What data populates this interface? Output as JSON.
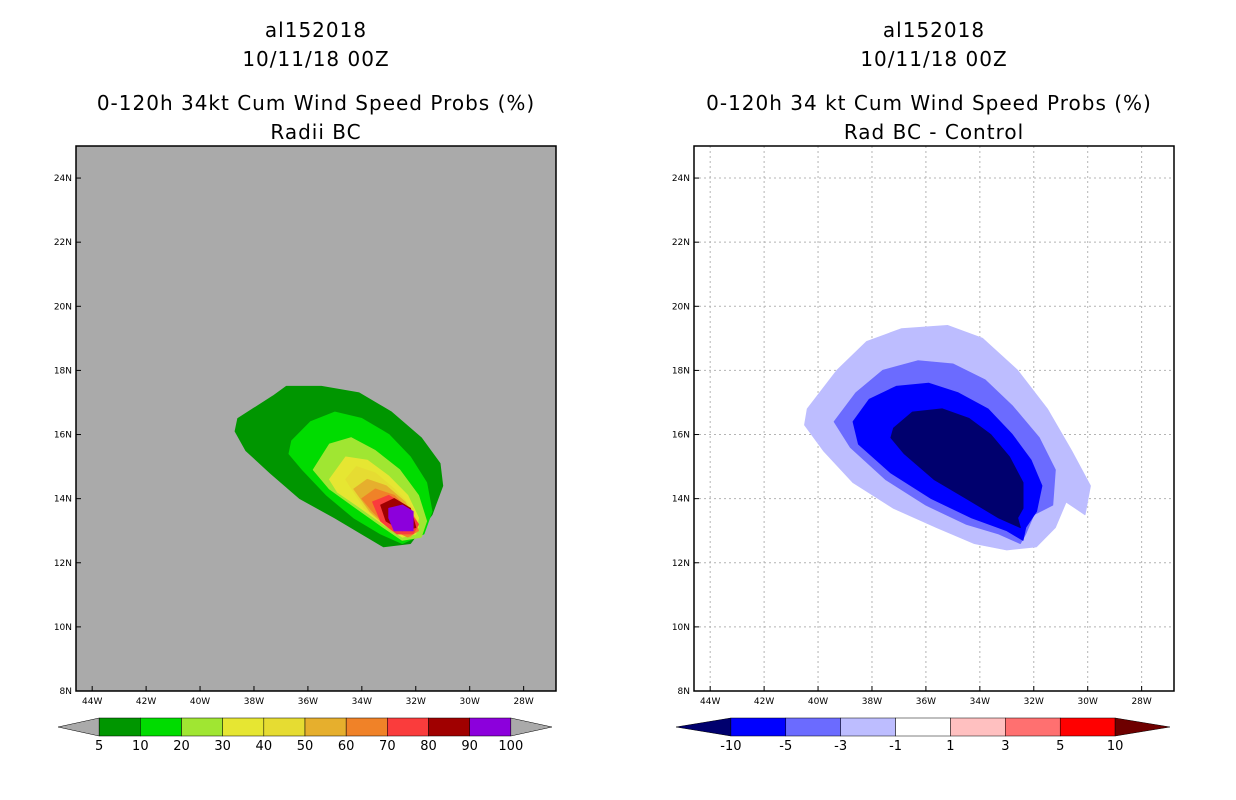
{
  "chart_data": [
    {
      "type": "filled-contour-map",
      "case_id": "al152018",
      "date": "10/11/18 00Z",
      "title": "0-120h 34kt Cum Wind Speed Probs (%)",
      "subtitle": "Radii BC",
      "x_ticks": [
        "44W",
        "42W",
        "40W",
        "38W",
        "36W",
        "34W",
        "32W",
        "30W",
        "28W"
      ],
      "y_ticks": [
        "24N",
        "22N",
        "20N",
        "18N",
        "16N",
        "14N",
        "12N",
        "10N",
        "8N"
      ],
      "xlim": [
        -44.6,
        -26.8
      ],
      "ylim": [
        8,
        25
      ],
      "grid": false,
      "background_color": "#aaaaaa",
      "colorbar": {
        "labels": [
          "5",
          "10",
          "20",
          "30",
          "40",
          "50",
          "60",
          "70",
          "80",
          "90",
          "100"
        ],
        "colors": [
          "#009600",
          "#00dc00",
          "#a0e632",
          "#e6e632",
          "#e6dc32",
          "#e6af2d",
          "#f08228",
          "#fa3c3c",
          "#a00000",
          "#8c00dc"
        ],
        "extend_colors": [
          "#aaaaaa",
          "#aaaaaa"
        ]
      },
      "contours": [
        {
          "level": 5,
          "color": "#009600",
          "points": [
            [
              -38.6,
              16.5
            ],
            [
              -37.3,
              17.2
            ],
            [
              -36.8,
              17.5
            ],
            [
              -35.5,
              17.5
            ],
            [
              -34.1,
              17.3
            ],
            [
              -32.9,
              16.7
            ],
            [
              -31.8,
              15.9
            ],
            [
              -31.1,
              15.1
            ],
            [
              -31.0,
              14.4
            ],
            [
              -31.4,
              13.5
            ],
            [
              -32.2,
              12.6
            ],
            [
              -33.2,
              12.5
            ],
            [
              -34.0,
              12.9
            ],
            [
              -35.0,
              13.4
            ],
            [
              -36.3,
              14.0
            ],
            [
              -37.4,
              14.8
            ],
            [
              -38.3,
              15.5
            ],
            [
              -38.7,
              16.1
            ]
          ]
        },
        {
          "level": 10,
          "color": "#00dc00",
          "points": [
            [
              -36.6,
              15.8
            ],
            [
              -35.9,
              16.4
            ],
            [
              -35.0,
              16.7
            ],
            [
              -34.0,
              16.5
            ],
            [
              -33.0,
              16.0
            ],
            [
              -32.2,
              15.3
            ],
            [
              -31.6,
              14.5
            ],
            [
              -31.4,
              13.6
            ],
            [
              -31.7,
              12.9
            ],
            [
              -32.5,
              12.6
            ],
            [
              -33.3,
              12.9
            ],
            [
              -34.3,
              13.4
            ],
            [
              -35.3,
              14.1
            ],
            [
              -36.2,
              14.9
            ],
            [
              -36.7,
              15.4
            ]
          ]
        },
        {
          "level": 20,
          "color": "#a0e632",
          "points": [
            [
              -35.8,
              14.9
            ],
            [
              -35.2,
              15.7
            ],
            [
              -34.4,
              15.9
            ],
            [
              -33.5,
              15.5
            ],
            [
              -32.6,
              14.9
            ],
            [
              -31.9,
              14.1
            ],
            [
              -31.6,
              13.3
            ],
            [
              -31.8,
              12.8
            ],
            [
              -32.5,
              12.7
            ],
            [
              -33.2,
              13.1
            ],
            [
              -34.2,
              13.7
            ],
            [
              -35.2,
              14.3
            ]
          ]
        },
        {
          "level": 30,
          "color": "#e6e632",
          "points": [
            [
              -35.2,
              14.6
            ],
            [
              -34.6,
              15.3
            ],
            [
              -33.8,
              15.2
            ],
            [
              -33.0,
              14.7
            ],
            [
              -32.3,
              14.1
            ],
            [
              -31.9,
              13.4
            ],
            [
              -32.0,
              12.9
            ],
            [
              -32.5,
              12.8
            ],
            [
              -33.2,
              13.2
            ],
            [
              -34.2,
              13.8
            ],
            [
              -34.9,
              14.2
            ]
          ]
        },
        {
          "level": 40,
          "color": "#e6dc32",
          "points": [
            [
              -34.6,
              14.6
            ],
            [
              -34.2,
              15.0
            ],
            [
              -33.5,
              14.8
            ],
            [
              -32.8,
              14.3
            ],
            [
              -32.1,
              13.7
            ],
            [
              -31.9,
              13.1
            ],
            [
              -32.3,
              12.8
            ],
            [
              -33.0,
              13.1
            ],
            [
              -33.9,
              13.7
            ]
          ]
        },
        {
          "level": 50,
          "color": "#e6af2d",
          "points": [
            [
              -34.3,
              14.3
            ],
            [
              -33.8,
              14.6
            ],
            [
              -33.1,
              14.4
            ],
            [
              -32.4,
              13.9
            ],
            [
              -31.9,
              13.2
            ],
            [
              -32.2,
              12.8
            ],
            [
              -32.9,
              13.0
            ],
            [
              -33.7,
              13.6
            ]
          ]
        },
        {
          "level": 60,
          "color": "#f08228",
          "points": [
            [
              -34.0,
              14.0
            ],
            [
              -33.5,
              14.3
            ],
            [
              -32.8,
              14.1
            ],
            [
              -32.2,
              13.6
            ],
            [
              -31.9,
              13.0
            ],
            [
              -32.3,
              12.8
            ],
            [
              -33.0,
              13.1
            ],
            [
              -33.6,
              13.6
            ]
          ]
        },
        {
          "level": 70,
          "color": "#fa3c3c",
          "points": [
            [
              -33.6,
              13.9
            ],
            [
              -33.0,
              14.1
            ],
            [
              -32.4,
              13.8
            ],
            [
              -31.9,
              13.2
            ],
            [
              -32.1,
              12.9
            ],
            [
              -32.7,
              12.9
            ],
            [
              -33.3,
              13.3
            ]
          ]
        },
        {
          "level": 80,
          "color": "#a00000",
          "points": [
            [
              -33.3,
              13.8
            ],
            [
              -32.8,
              14.0
            ],
            [
              -32.2,
              13.7
            ],
            [
              -32.0,
              13.1
            ],
            [
              -32.5,
              13.0
            ],
            [
              -33.1,
              13.3
            ]
          ]
        },
        {
          "level": 90,
          "color": "#8c00dc",
          "points": [
            [
              -33.0,
              13.7
            ],
            [
              -32.5,
              13.8
            ],
            [
              -32.1,
              13.6
            ],
            [
              -32.1,
              13.0
            ],
            [
              -32.8,
              13.0
            ],
            [
              -33.0,
              13.4
            ]
          ]
        }
      ]
    },
    {
      "type": "filled-contour-map",
      "case_id": "al152018",
      "date": "10/11/18 00Z",
      "title": "0-120h 34 kt Cum Wind Speed Probs (%)",
      "subtitle": "Rad BC - Control",
      "x_ticks": [
        "44W",
        "42W",
        "40W",
        "38W",
        "36W",
        "34W",
        "32W",
        "30W",
        "28W"
      ],
      "y_ticks": [
        "24N",
        "22N",
        "20N",
        "18N",
        "16N",
        "14N",
        "12N",
        "10N",
        "8N"
      ],
      "xlim": [
        -44.6,
        -26.8
      ],
      "ylim": [
        8,
        25
      ],
      "grid": true,
      "background_color": "#ffffff",
      "colorbar": {
        "labels": [
          "-10",
          "-5",
          "-3",
          "-1",
          "1",
          "3",
          "5",
          "10"
        ],
        "colors": [
          "#0000ff",
          "#6b6bff",
          "#bdbdff",
          "#ffffff",
          "#ffc0c0",
          "#ff7070",
          "#ff0000"
        ],
        "extend_colors": [
          "#00006e",
          "#6e0000"
        ]
      },
      "contours": [
        {
          "level": -1,
          "color": "#bdbdff",
          "points": [
            [
              -40.4,
              16.8
            ],
            [
              -39.3,
              18.0
            ],
            [
              -38.2,
              18.9
            ],
            [
              -36.9,
              19.3
            ],
            [
              -35.2,
              19.4
            ],
            [
              -33.9,
              19.0
            ],
            [
              -32.6,
              18.0
            ],
            [
              -31.5,
              16.8
            ],
            [
              -30.6,
              15.5
            ],
            [
              -29.9,
              14.4
            ],
            [
              -30.1,
              13.5
            ],
            [
              -30.8,
              13.9
            ],
            [
              -31.2,
              13.1
            ],
            [
              -31.9,
              12.5
            ],
            [
              -33.0,
              12.4
            ],
            [
              -34.2,
              12.6
            ],
            [
              -35.6,
              13.1
            ],
            [
              -37.2,
              13.7
            ],
            [
              -38.7,
              14.5
            ],
            [
              -39.8,
              15.5
            ],
            [
              -40.5,
              16.3
            ]
          ]
        },
        {
          "level": -3,
          "color": "#6b6bff",
          "points": [
            [
              -39.4,
              16.4
            ],
            [
              -38.6,
              17.3
            ],
            [
              -37.6,
              18.0
            ],
            [
              -36.3,
              18.3
            ],
            [
              -35.0,
              18.2
            ],
            [
              -33.8,
              17.7
            ],
            [
              -32.8,
              16.9
            ],
            [
              -31.8,
              15.9
            ],
            [
              -31.2,
              14.9
            ],
            [
              -31.3,
              13.8
            ],
            [
              -32.0,
              13.5
            ],
            [
              -32.3,
              12.9
            ],
            [
              -32.5,
              12.6
            ],
            [
              -33.3,
              12.9
            ],
            [
              -34.5,
              13.2
            ],
            [
              -36.0,
              13.8
            ],
            [
              -37.5,
              14.6
            ],
            [
              -38.8,
              15.6
            ]
          ]
        },
        {
          "level": -5,
          "color": "#0000ff",
          "points": [
            [
              -38.7,
              16.4
            ],
            [
              -38.1,
              17.1
            ],
            [
              -37.1,
              17.5
            ],
            [
              -35.9,
              17.6
            ],
            [
              -34.8,
              17.3
            ],
            [
              -33.7,
              16.8
            ],
            [
              -32.8,
              16.0
            ],
            [
              -32.1,
              15.2
            ],
            [
              -31.7,
              14.4
            ],
            [
              -31.9,
              13.6
            ],
            [
              -32.3,
              13.1
            ],
            [
              -32.4,
              12.7
            ],
            [
              -33.0,
              13.0
            ],
            [
              -34.3,
              13.4
            ],
            [
              -35.8,
              14.0
            ],
            [
              -37.3,
              14.8
            ],
            [
              -38.5,
              15.7
            ]
          ]
        },
        {
          "level": -10,
          "color": "#00006e",
          "points": [
            [
              -37.2,
              16.2
            ],
            [
              -36.5,
              16.7
            ],
            [
              -35.4,
              16.8
            ],
            [
              -34.4,
              16.5
            ],
            [
              -33.6,
              16.0
            ],
            [
              -32.9,
              15.3
            ],
            [
              -32.4,
              14.5
            ],
            [
              -32.4,
              13.7
            ],
            [
              -32.6,
              13.4
            ],
            [
              -32.5,
              13.1
            ],
            [
              -33.3,
              13.4
            ],
            [
              -34.5,
              14.0
            ],
            [
              -35.7,
              14.6
            ],
            [
              -36.8,
              15.4
            ],
            [
              -37.3,
              15.9
            ]
          ]
        }
      ]
    }
  ]
}
